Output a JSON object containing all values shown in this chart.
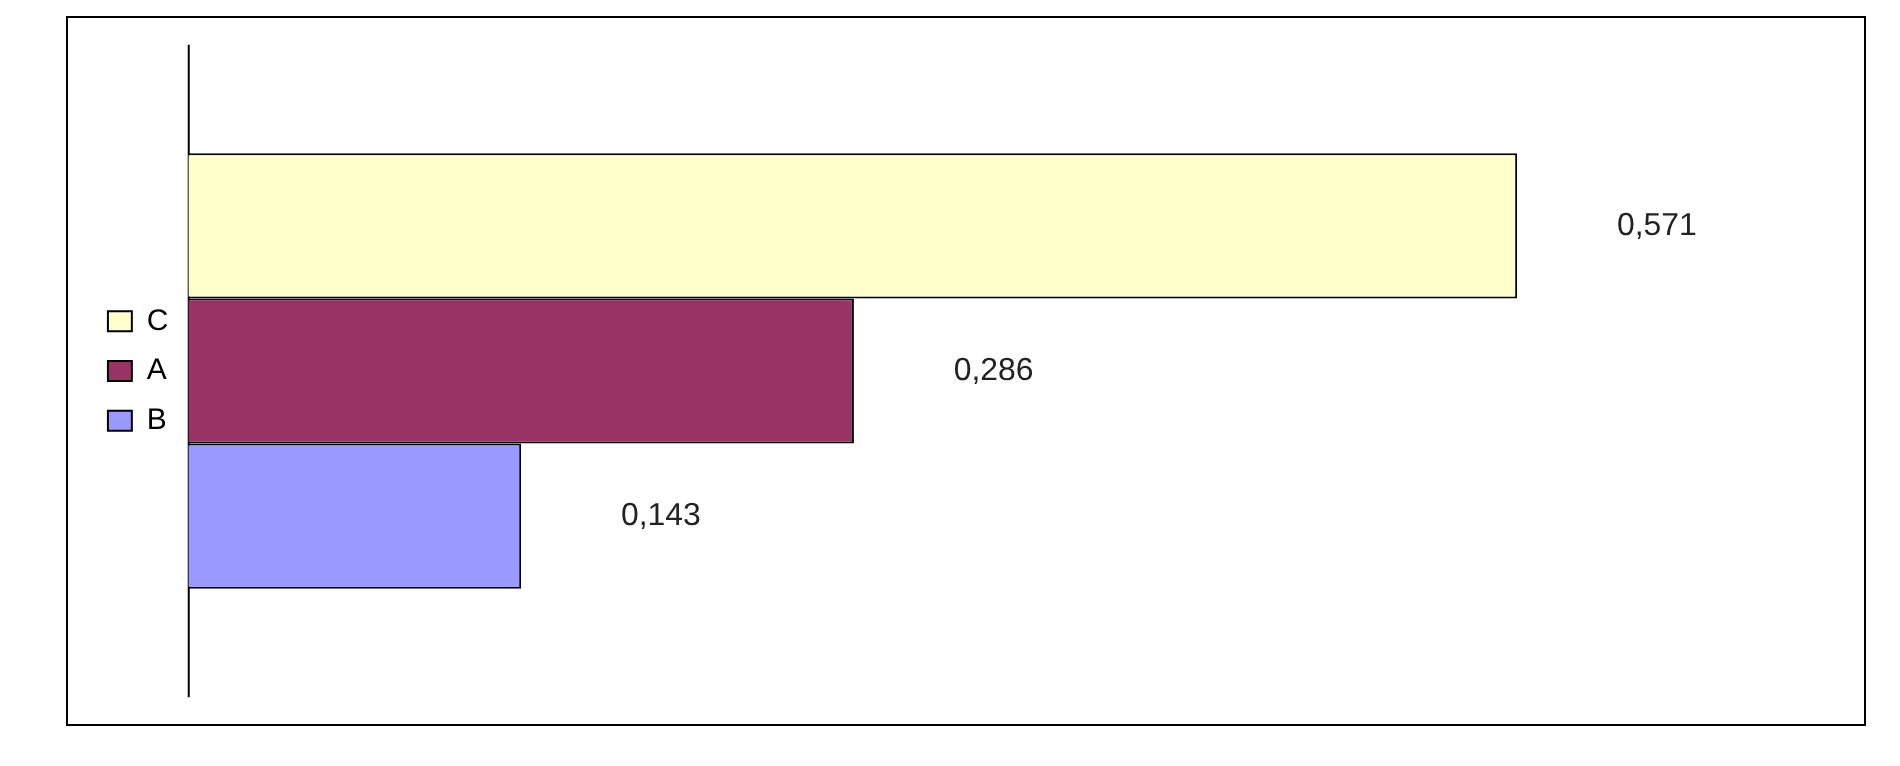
{
  "chart_data": {
    "type": "bar",
    "orientation": "horizontal",
    "categories": [
      null
    ],
    "legend": "left",
    "series": [
      {
        "name": "C",
        "color": "#ffffcc",
        "values": [
          0.571
        ],
        "value_labels": [
          "0,571"
        ]
      },
      {
        "name": "A",
        "color": "#993366",
        "values": [
          0.286
        ],
        "value_labels": [
          "0,286"
        ]
      },
      {
        "name": "B",
        "color": "#9999ff",
        "values": [
          0.143
        ],
        "value_labels": [
          "0,143"
        ]
      }
    ]
  }
}
